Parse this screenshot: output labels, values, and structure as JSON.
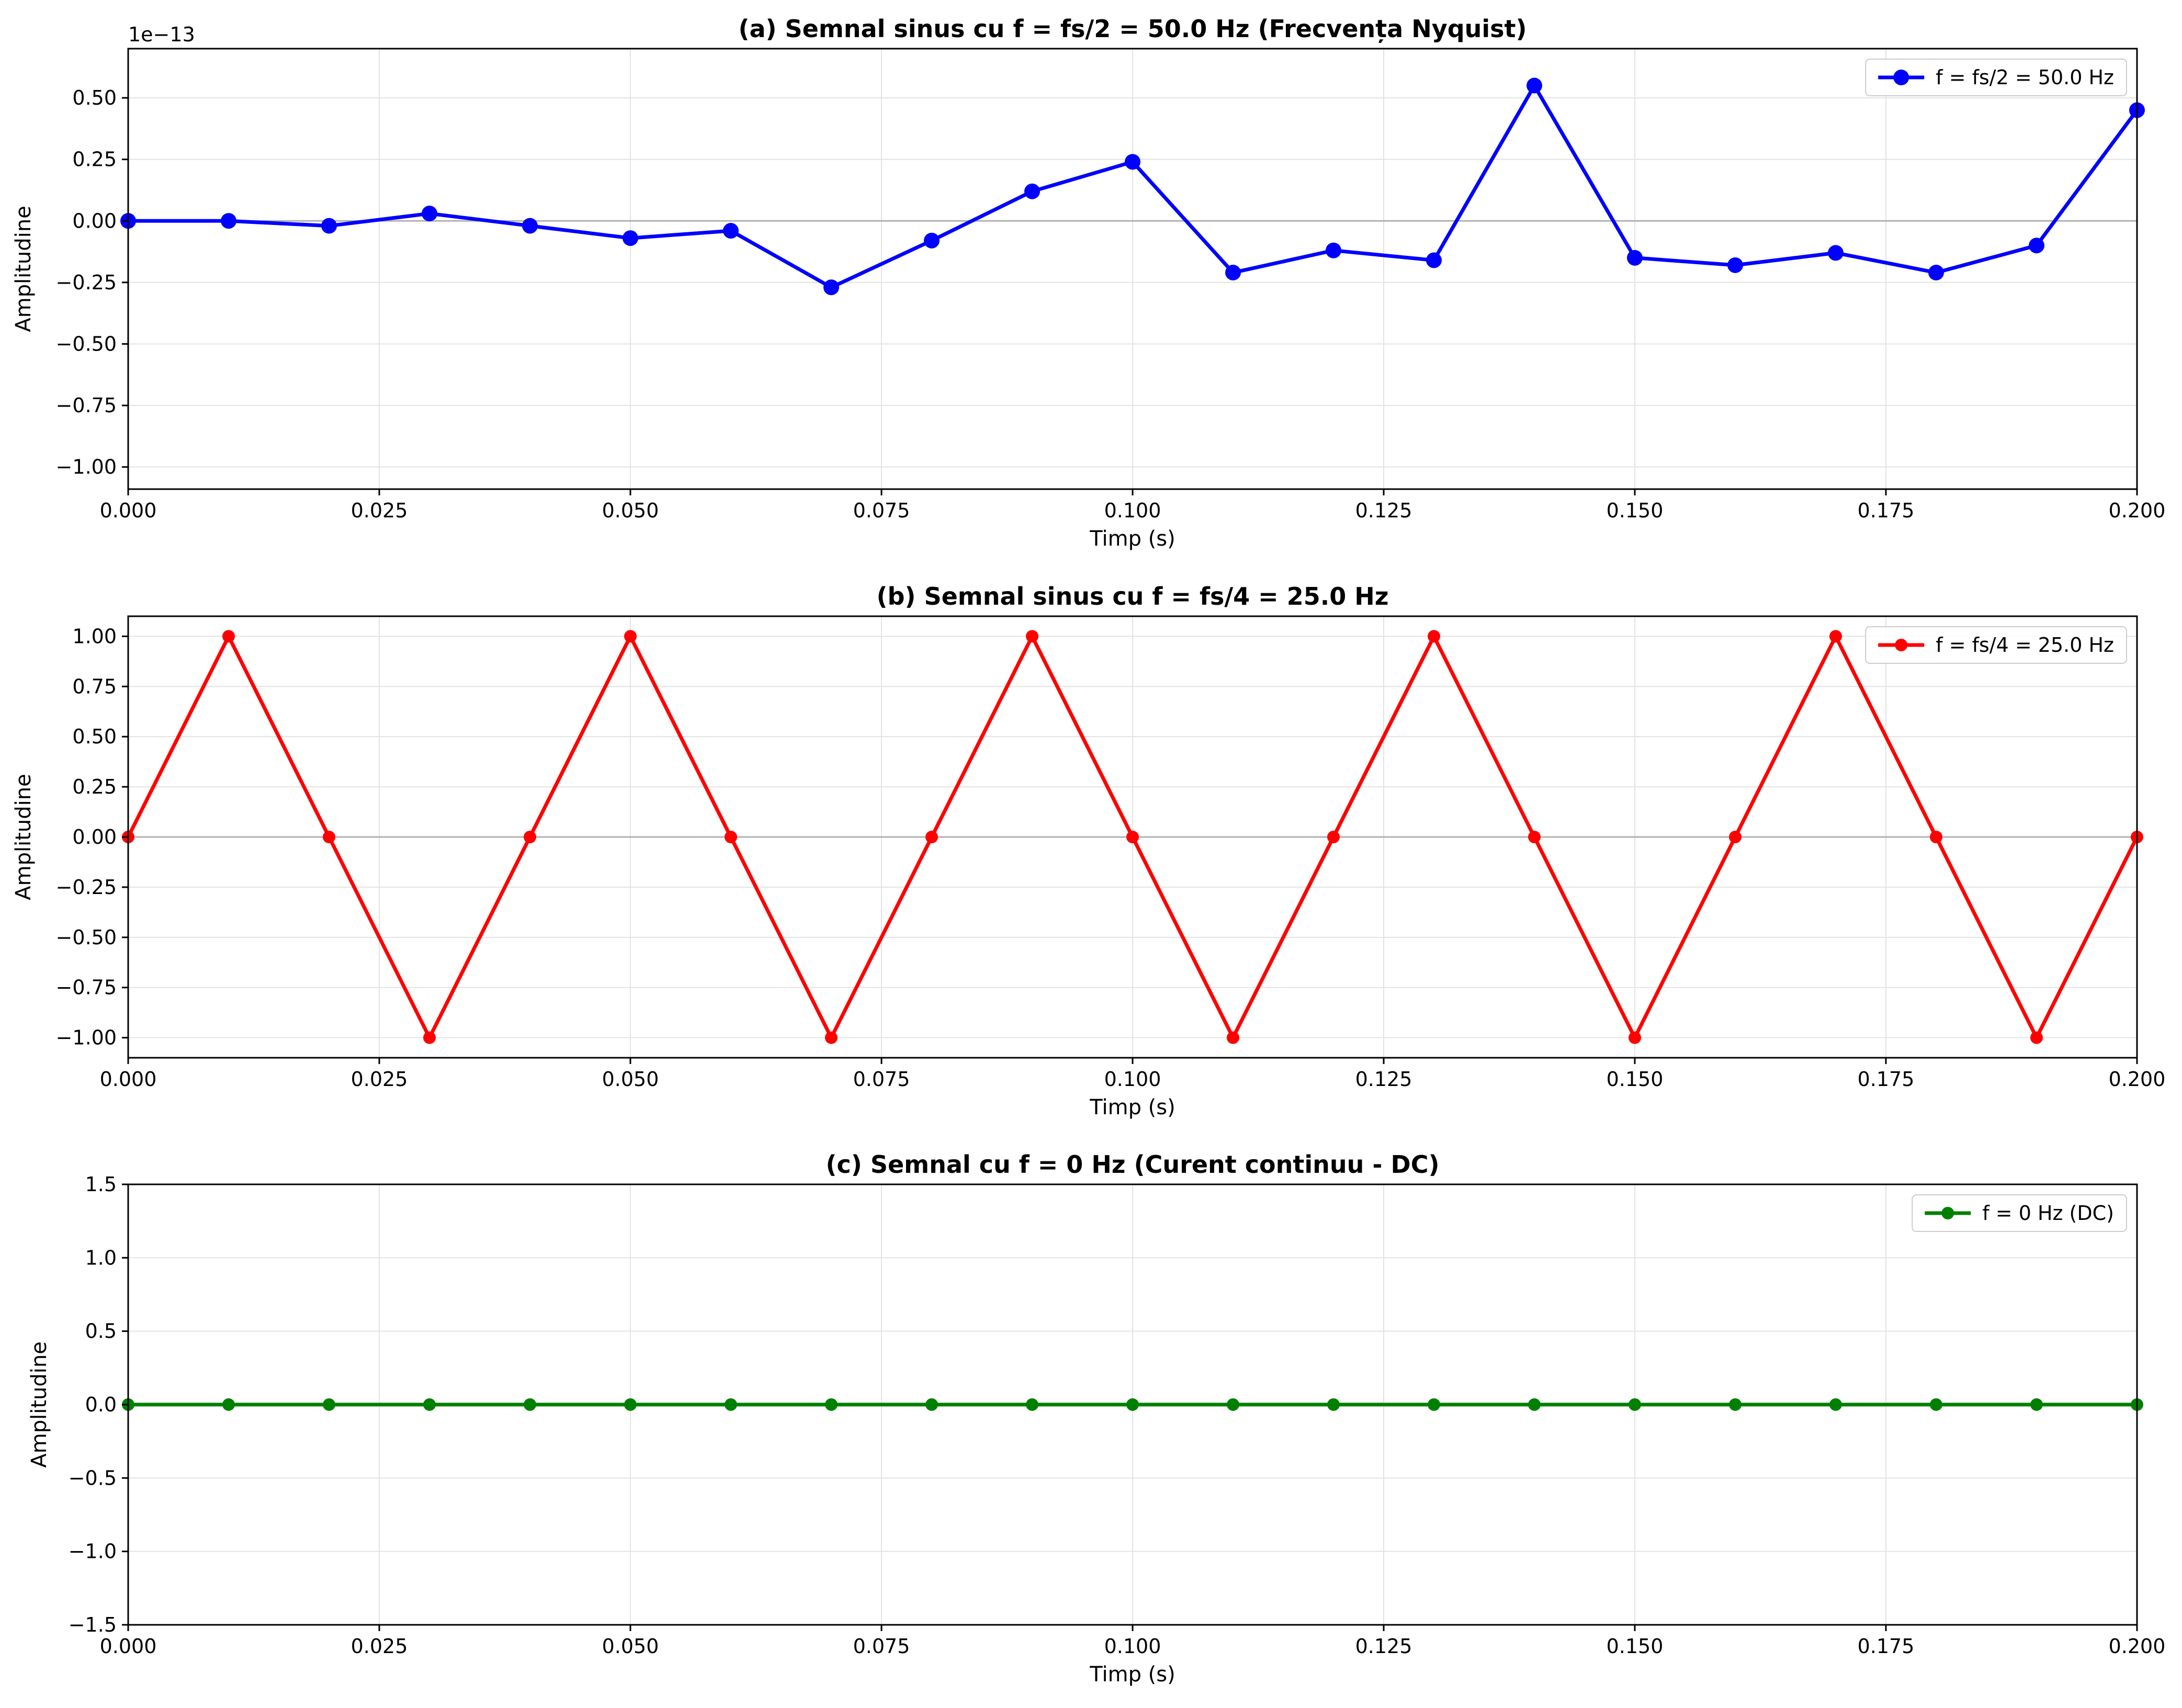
{
  "chart_data": [
    {
      "type": "line",
      "title": "(a) Semnal sinus cu f = fs/2 = 50.0 Hz (Frecvența Nyquist)",
      "xlabel": "Timp (s)",
      "ylabel": "Amplitudine",
      "xlim": [
        0.0,
        0.2
      ],
      "ylim": [
        -1.09e-13,
        7e-14
      ],
      "y_scale_offset": "1e−13",
      "xticks": [
        0.0,
        0.025,
        0.05,
        0.075,
        0.1,
        0.125,
        0.15,
        0.175,
        0.2
      ],
      "xtick_labels": [
        "0.000",
        "0.025",
        "0.050",
        "0.075",
        "0.100",
        "0.125",
        "0.150",
        "0.175",
        "0.200"
      ],
      "yticks": [
        5e-14,
        2.5e-14,
        0.0,
        -2.5e-14,
        -5e-14,
        -7.5e-14,
        -1e-13
      ],
      "ytick_labels": [
        "0.50",
        "0.25",
        "0.00",
        "−0.25",
        "−0.50",
        "−0.75",
        "−1.00"
      ],
      "grid": true,
      "legend_position": "top-right",
      "series": [
        {
          "name": "f = fs/2 = 50.0 Hz",
          "color": "#0000ff",
          "marker": "circle-large",
          "x": [
            0.0,
            0.01,
            0.02,
            0.03,
            0.04,
            0.05,
            0.06,
            0.07,
            0.08,
            0.09,
            0.1,
            0.11,
            0.12,
            0.13,
            0.14,
            0.15,
            0.16,
            0.17,
            0.18,
            0.19,
            0.2
          ],
          "y": [
            0.0,
            0.0,
            -2e-15,
            3e-15,
            -2e-15,
            -7e-15,
            -4e-15,
            -2.7e-14,
            -8e-15,
            1.2e-14,
            2.4e-14,
            -2.1e-14,
            -1.2e-14,
            -1.6e-14,
            5.5e-14,
            -1.5e-14,
            -1.8e-14,
            -1.3e-14,
            -2.1e-14,
            -1e-14,
            4.5e-14
          ]
        }
      ]
    },
    {
      "type": "line",
      "title": "(b) Semnal sinus cu f = fs/4 = 25.0 Hz",
      "xlabel": "Timp (s)",
      "ylabel": "Amplitudine",
      "xlim": [
        0.0,
        0.2
      ],
      "ylim": [
        -1.1,
        1.1
      ],
      "xticks": [
        0.0,
        0.025,
        0.05,
        0.075,
        0.1,
        0.125,
        0.15,
        0.175,
        0.2
      ],
      "xtick_labels": [
        "0.000",
        "0.025",
        "0.050",
        "0.075",
        "0.100",
        "0.125",
        "0.150",
        "0.175",
        "0.200"
      ],
      "yticks": [
        1.0,
        0.75,
        0.5,
        0.25,
        0.0,
        -0.25,
        -0.5,
        -0.75,
        -1.0
      ],
      "ytick_labels": [
        "1.00",
        "0.75",
        "0.50",
        "0.25",
        "0.00",
        "−0.25",
        "−0.50",
        "−0.75",
        "−1.00"
      ],
      "grid": true,
      "legend_position": "top-right",
      "series": [
        {
          "name": "f = fs/4 = 25.0 Hz",
          "color": "#ff0000",
          "marker": "circle-small",
          "x": [
            0.0,
            0.01,
            0.02,
            0.03,
            0.04,
            0.05,
            0.06,
            0.07,
            0.08,
            0.09,
            0.1,
            0.11,
            0.12,
            0.13,
            0.14,
            0.15,
            0.16,
            0.17,
            0.18,
            0.19,
            0.2
          ],
          "y": [
            0,
            1,
            0,
            -1,
            0,
            1,
            0,
            -1,
            0,
            1,
            0,
            -1,
            0,
            1,
            0,
            -1,
            0,
            1,
            0,
            -1,
            0
          ]
        }
      ]
    },
    {
      "type": "line",
      "title": "(c) Semnal cu f = 0 Hz (Curent continuu - DC)",
      "xlabel": "Timp (s)",
      "ylabel": "Amplitudine",
      "xlim": [
        0.0,
        0.2
      ],
      "ylim": [
        -1.5,
        1.5
      ],
      "xticks": [
        0.0,
        0.025,
        0.05,
        0.075,
        0.1,
        0.125,
        0.15,
        0.175,
        0.2
      ],
      "xtick_labels": [
        "0.000",
        "0.025",
        "0.050",
        "0.075",
        "0.100",
        "0.125",
        "0.150",
        "0.175",
        "0.200"
      ],
      "yticks": [
        1.5,
        1.0,
        0.5,
        0.0,
        -0.5,
        -1.0,
        -1.5
      ],
      "ytick_labels": [
        "1.5",
        "1.0",
        "0.5",
        "0.0",
        "−0.5",
        "−1.0",
        "−1.5"
      ],
      "grid": true,
      "legend_position": "top-right",
      "series": [
        {
          "name": "f = 0 Hz (DC)",
          "color": "#008000",
          "marker": "circle-small",
          "x": [
            0.0,
            0.01,
            0.02,
            0.03,
            0.04,
            0.05,
            0.06,
            0.07,
            0.08,
            0.09,
            0.1,
            0.11,
            0.12,
            0.13,
            0.14,
            0.15,
            0.16,
            0.17,
            0.18,
            0.19,
            0.2
          ],
          "y": [
            0,
            0,
            0,
            0,
            0,
            0,
            0,
            0,
            0,
            0,
            0,
            0,
            0,
            0,
            0,
            0,
            0,
            0,
            0,
            0,
            0
          ]
        }
      ]
    }
  ]
}
